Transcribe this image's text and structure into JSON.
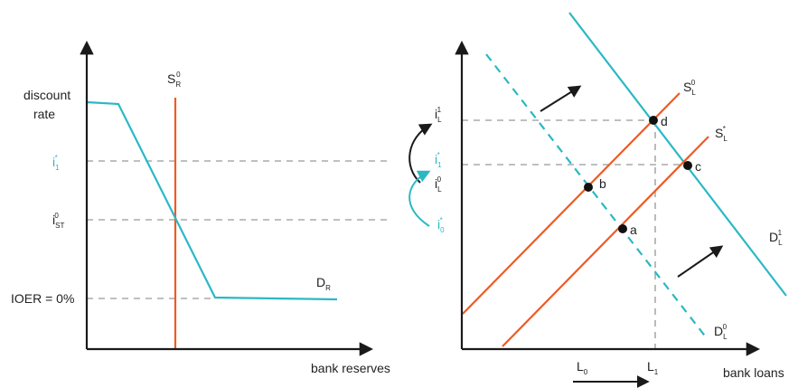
{
  "colors": {
    "axis": "#1a1a1a",
    "demand": "#2bb8c4",
    "supply": "#ef5a23",
    "guide": "#aaaaaa",
    "text": "#222222",
    "teal_text": "#2bb8c4"
  },
  "left_panel": {
    "y_labels": {
      "discount_line1": "discount",
      "discount_line2": "rate",
      "i1_base": "i",
      "i1_sub": "1",
      "i1_sup": "*",
      "ist_base": "i",
      "ist_sub": "ST",
      "ist_sup": "0",
      "ioer": "IOER = 0%"
    },
    "supply_label": {
      "base": "S",
      "sub": "R",
      "sup": "0"
    },
    "demand_label": {
      "base": "D",
      "sub": "R"
    },
    "x_label": "bank reserves"
  },
  "right_panel": {
    "y_labels": {
      "iL1_base": "i",
      "iL1_sub": "L",
      "iL1_sup": "1",
      "i1_base": "i",
      "i1_sub": "1",
      "i1_sup": "*",
      "iL0_base": "i",
      "iL0_sub": "L",
      "iL0_sup": "0",
      "i0_base": "i",
      "i0_sub": "0",
      "i0_sup": "*"
    },
    "curve_labels": {
      "sl0": {
        "base": "S",
        "sub": "L",
        "sup": "0"
      },
      "sl1": {
        "base": "S",
        "sub": "L",
        "sup": "*"
      },
      "dl1": {
        "base": "D",
        "sub": "L",
        "sup": "1"
      },
      "dl0": {
        "base": "D",
        "sub": "L",
        "sup": "0"
      }
    },
    "points": {
      "a": "a",
      "b": "b",
      "c": "c",
      "d": "d"
    },
    "x_ticks": {
      "L0_base": "L",
      "L0_sub": "0",
      "L1_base": "L",
      "L1_sub": "1"
    },
    "x_label": "bank loans"
  }
}
